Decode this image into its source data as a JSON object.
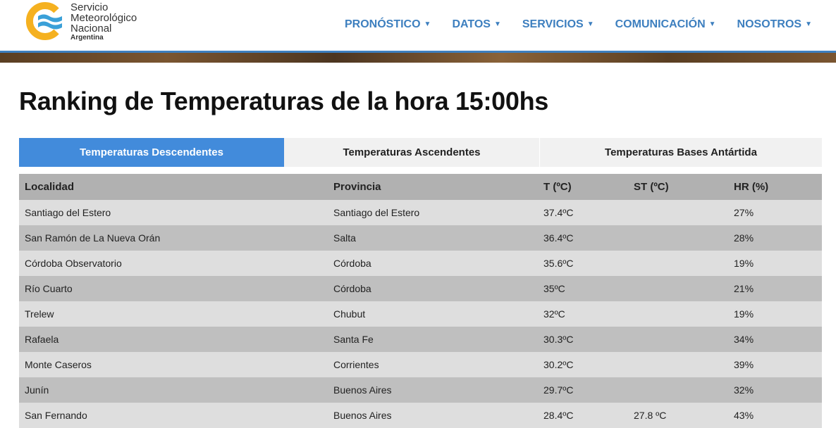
{
  "logo": {
    "line1": "Servicio",
    "line2": "Meteorológico",
    "line3": "Nacional",
    "sub": "Argentina",
    "colors": {
      "ring": "#f5b120",
      "waves": "#3aa0d8"
    }
  },
  "nav": [
    {
      "label": "PRONÓSTICO"
    },
    {
      "label": "DATOS"
    },
    {
      "label": "SERVICIOS"
    },
    {
      "label": "COMUNICACIÓN"
    },
    {
      "label": "NOSOTROS"
    }
  ],
  "page_title": "Ranking de Temperaturas de la hora 15:00hs",
  "tabs": [
    {
      "label": "Temperaturas Descendentes",
      "active": true
    },
    {
      "label": "Temperaturas Ascendentes",
      "active": false
    },
    {
      "label": "Temperaturas Bases Antártida",
      "active": false
    }
  ],
  "table": {
    "headers": [
      "Localidad",
      "Provincia",
      "T (ºC)",
      "ST (ºC)",
      "HR (%)"
    ],
    "rows": [
      [
        "Santiago del Estero",
        "Santiago del Estero",
        "37.4ºC",
        "",
        "27%"
      ],
      [
        "San Ramón de La Nueva Orán",
        "Salta",
        "36.4ºC",
        "",
        "28%"
      ],
      [
        "Córdoba Observatorio",
        "Córdoba",
        "35.6ºC",
        "",
        "19%"
      ],
      [
        "Río Cuarto",
        "Córdoba",
        "35ºC",
        "",
        "21%"
      ],
      [
        "Trelew",
        "Chubut",
        "32ºC",
        "",
        "19%"
      ],
      [
        "Rafaela",
        "Santa Fe",
        "30.3ºC",
        "",
        "34%"
      ],
      [
        "Monte Caseros",
        "Corrientes",
        "30.2ºC",
        "",
        "39%"
      ],
      [
        "Junín",
        "Buenos Aires",
        "29.7ºC",
        "",
        "32%"
      ],
      [
        "San Fernando",
        "Buenos Aires",
        "28.4ºC",
        "27.8 ºC",
        "43%"
      ]
    ]
  },
  "colors": {
    "accent": "#428bdb",
    "nav": "#3d7fbf"
  }
}
